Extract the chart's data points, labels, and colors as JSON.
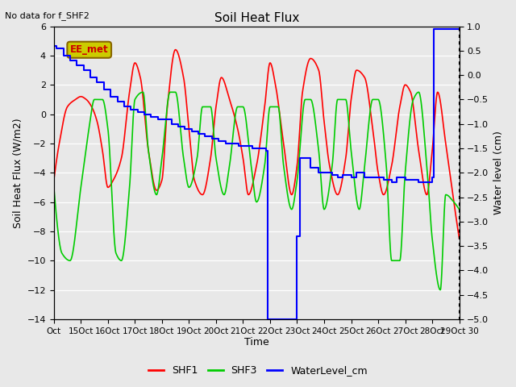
{
  "title": "Soil Heat Flux",
  "note": "No data for f_SHF2",
  "ylabel_left": "Soil Heat Flux (W/m2)",
  "ylabel_right": "Water level (cm)",
  "xlabel": "Time",
  "ylim_left": [
    -14,
    6
  ],
  "ylim_right": [
    -5.0,
    1.0
  ],
  "fig_bg_color": "#e8e8e8",
  "plot_bg_color": "#e8e8e8",
  "grid_color": "#ffffff",
  "shf1_color": "#ff0000",
  "shf3_color": "#00cc00",
  "water_color": "#0000ff",
  "xtick_labels": [
    "Oct",
    "15Oct",
    "16Oct",
    "17Oct",
    "18Oct",
    "19Oct",
    "20Oct",
    "21Oct",
    "22Oct",
    "23Oct",
    "24Oct",
    "25Oct",
    "26Oct",
    "27Oct",
    "28Oct",
    "29Oct 30"
  ],
  "legend_items": [
    "SHF1",
    "SHF3",
    "WaterLevel_cm"
  ],
  "ee_met_label": "EE_met",
  "ee_met_bg": "#cccc00",
  "ee_met_text_color": "#cc0000",
  "ee_met_edge_color": "#886600",
  "shf1_x": [
    0,
    0.2,
    0.5,
    0.8,
    1.0,
    1.2,
    1.4,
    1.6,
    1.8,
    2.0,
    2.2,
    2.5,
    2.8,
    3.0,
    3.2,
    3.5,
    3.8,
    4.0,
    4.2,
    4.5,
    4.8,
    5.0,
    5.2,
    5.5,
    5.8,
    6.0,
    6.2,
    6.5,
    6.8,
    7.0,
    7.2,
    7.5,
    7.8,
    8.0,
    8.2,
    8.5,
    8.8,
    9.0,
    9.2,
    9.5,
    9.8,
    10.0,
    10.2,
    10.5,
    10.8,
    11.0,
    11.2,
    11.5,
    11.8,
    12.0,
    12.2,
    12.5,
    12.8,
    13.0,
    13.2,
    13.5,
    13.8,
    14.0,
    14.2,
    14.5,
    14.8,
    15.0
  ],
  "shf1_y": [
    -4.5,
    -2.0,
    0.5,
    1.0,
    1.2,
    1.0,
    0.5,
    -0.5,
    -2.5,
    -5.0,
    -4.5,
    -3.0,
    1.5,
    3.5,
    2.5,
    -2.5,
    -5.2,
    -4.5,
    0.5,
    4.4,
    2.5,
    -1.0,
    -4.5,
    -5.5,
    -3.0,
    0.5,
    2.5,
    1.0,
    -1.0,
    -3.0,
    -5.5,
    -3.5,
    0.5,
    3.5,
    2.0,
    -2.0,
    -5.5,
    -3.5,
    1.5,
    3.8,
    3.0,
    -0.5,
    -3.5,
    -5.5,
    -3.0,
    1.0,
    3.0,
    2.5,
    -1.0,
    -4.0,
    -5.5,
    -3.5,
    0.5,
    2.0,
    1.5,
    -2.5,
    -5.5,
    -2.5,
    1.5,
    -2.0,
    -6.0,
    -8.5
  ],
  "shf3_x": [
    0,
    0.3,
    0.6,
    1.0,
    1.3,
    1.5,
    1.8,
    2.0,
    2.3,
    2.5,
    2.8,
    3.0,
    3.3,
    3.5,
    3.8,
    4.0,
    4.3,
    4.5,
    4.8,
    5.0,
    5.3,
    5.5,
    5.8,
    6.0,
    6.3,
    6.5,
    6.8,
    7.0,
    7.3,
    7.5,
    7.8,
    8.0,
    8.3,
    8.5,
    8.8,
    9.0,
    9.3,
    9.5,
    9.8,
    10.0,
    10.3,
    10.5,
    10.8,
    11.0,
    11.3,
    11.5,
    11.8,
    12.0,
    12.3,
    12.5,
    12.8,
    13.0,
    13.3,
    13.5,
    13.8,
    14.0,
    14.3,
    14.5,
    14.8,
    15.0
  ],
  "shf3_y": [
    -5.0,
    -9.5,
    -10.0,
    -5.0,
    -1.0,
    1.0,
    1.0,
    -1.0,
    -9.5,
    -10.0,
    -5.0,
    1.0,
    1.5,
    -2.5,
    -5.5,
    -3.0,
    1.5,
    1.5,
    -3.0,
    -5.0,
    -3.0,
    0.5,
    0.5,
    -3.0,
    -5.5,
    -3.5,
    0.5,
    0.5,
    -3.5,
    -6.0,
    -3.5,
    0.5,
    0.5,
    -3.5,
    -6.5,
    -4.5,
    1.0,
    1.0,
    -2.5,
    -6.5,
    -3.5,
    1.0,
    1.0,
    -2.5,
    -6.5,
    -3.5,
    1.0,
    1.0,
    -3.5,
    -10.0,
    -10.0,
    -4.0,
    1.0,
    1.5,
    -3.5,
    -8.5,
    -12.0,
    -5.5,
    -6.0,
    -6.5
  ],
  "water_x": [
    0.0,
    0.1,
    0.35,
    0.6,
    0.85,
    1.1,
    1.35,
    1.6,
    1.85,
    2.1,
    2.35,
    2.6,
    2.85,
    3.1,
    3.35,
    3.6,
    3.85,
    4.1,
    4.35,
    4.6,
    4.85,
    5.1,
    5.35,
    5.6,
    5.85,
    6.1,
    6.35,
    6.6,
    6.85,
    7.1,
    7.35,
    7.6,
    7.85,
    7.9,
    8.9,
    9.0,
    9.1,
    9.5,
    9.8,
    10.0,
    10.3,
    10.5,
    10.7,
    11.0,
    11.2,
    11.5,
    11.7,
    12.0,
    12.2,
    12.5,
    12.7,
    13.0,
    13.2,
    13.5,
    13.7,
    14.0,
    14.05,
    14.5,
    15.0
  ],
  "water_cm": [
    0.6,
    0.55,
    0.4,
    0.3,
    0.2,
    0.1,
    -0.05,
    -0.15,
    -0.3,
    -0.45,
    -0.55,
    -0.65,
    -0.7,
    -0.75,
    -0.8,
    -0.85,
    -0.9,
    -0.9,
    -1.0,
    -1.05,
    -1.1,
    -1.15,
    -1.2,
    -1.25,
    -1.3,
    -1.35,
    -1.4,
    -1.4,
    -1.45,
    -1.45,
    -1.5,
    -1.5,
    -1.55,
    -5.0,
    -5.0,
    -3.3,
    -1.7,
    -1.9,
    -2.0,
    -2.0,
    -2.05,
    -2.1,
    -2.05,
    -2.1,
    -2.0,
    -2.1,
    -2.1,
    -2.1,
    -2.15,
    -2.2,
    -2.1,
    -2.15,
    -2.15,
    -2.2,
    -2.2,
    -2.1,
    0.95,
    0.95,
    0.93
  ]
}
